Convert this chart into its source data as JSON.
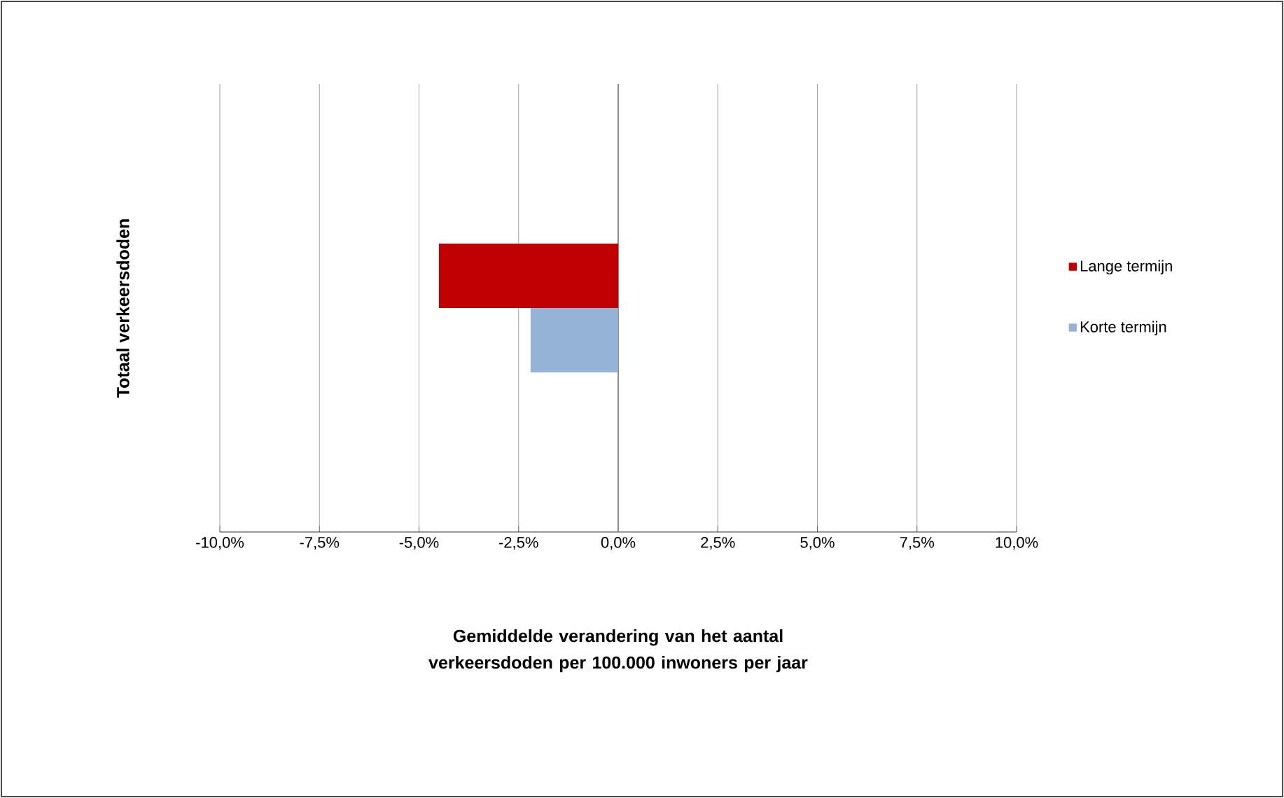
{
  "chart_data": {
    "type": "bar",
    "orientation": "horizontal",
    "xlabel": "Gemiddelde verandering van het aantal verkeersdoden per 100.000 inwoners per jaar",
    "ylabel": "Totaal verkeersdoden",
    "categories": [
      null
    ],
    "series": [
      {
        "name": "Lange termijn",
        "color": "#c00000",
        "values": [
          -4.5
        ]
      },
      {
        "name": "Korte termijn",
        "color": "#95b3d7",
        "values": [
          -2.2
        ]
      }
    ],
    "xlim": [
      -10,
      10
    ],
    "xticks": [
      {
        "value": -10,
        "label": "-10,0%"
      },
      {
        "value": -7.5,
        "label": "-7,5%"
      },
      {
        "value": -5,
        "label": "-5,0%"
      },
      {
        "value": -2.5,
        "label": "-2,5%"
      },
      {
        "value": 0,
        "label": "0,0%"
      },
      {
        "value": 2.5,
        "label": "2,5%"
      },
      {
        "value": 5,
        "label": "5,0%"
      },
      {
        "value": 7.5,
        "label": "7,5%"
      },
      {
        "value": 10,
        "label": "10,0%"
      }
    ],
    "grid": "x",
    "legend": "right"
  }
}
